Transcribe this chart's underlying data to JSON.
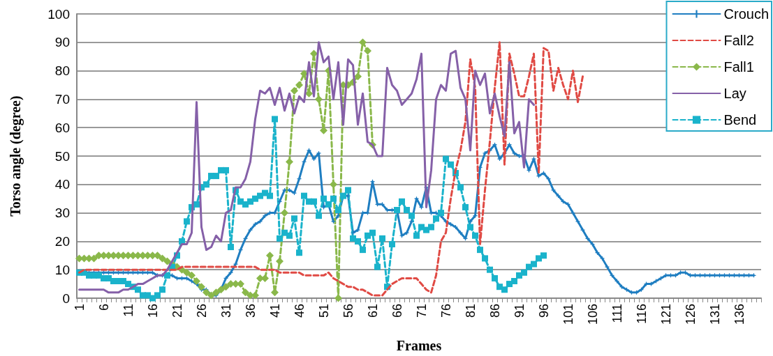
{
  "chart_data": {
    "type": "line",
    "xlabel": "Frames",
    "ylabel": "Torso angle (degree)",
    "categories": [
      "1",
      null,
      null,
      null,
      null,
      "6",
      null,
      null,
      null,
      null,
      "11",
      null,
      null,
      null,
      null,
      "16",
      null,
      null,
      null,
      null,
      "21",
      null,
      null,
      null,
      null,
      "26",
      null,
      null,
      null,
      null,
      "31",
      null,
      null,
      null,
      null,
      "36",
      null,
      null,
      null,
      null,
      "41",
      null,
      null,
      null,
      null,
      "46",
      null,
      null,
      null,
      null,
      "51",
      null,
      null,
      null,
      null,
      "56",
      null,
      null,
      null,
      null,
      "61",
      null,
      null,
      null,
      null,
      "66",
      null,
      null,
      null,
      null,
      "71",
      null,
      null,
      null,
      null,
      "76",
      null,
      null,
      null,
      null,
      "81",
      null,
      null,
      null,
      null,
      "86",
      null,
      null,
      null,
      null,
      "91",
      null,
      null,
      null,
      null,
      "96",
      null,
      null,
      null,
      null,
      "101",
      null,
      null,
      null,
      null,
      "106",
      null,
      null,
      null,
      null,
      "111",
      null,
      null,
      null,
      null,
      "116",
      null,
      null,
      null,
      null,
      "121",
      null,
      null,
      null,
      null,
      "126",
      null,
      null,
      null,
      null,
      "131",
      null,
      null,
      null,
      null,
      "136",
      null,
      null,
      null,
      null
    ],
    "series": [
      {
        "name": "Crouch",
        "color": "#1f7ec1",
        "marker": "cross",
        "line_style": "solid",
        "values": [
          9,
          9,
          9,
          9,
          9,
          9,
          9,
          9,
          9,
          9,
          9,
          9,
          9,
          9,
          9,
          9,
          8,
          8,
          8,
          8,
          7,
          7,
          7,
          6,
          5,
          3,
          3,
          1,
          1,
          3,
          7,
          9,
          12,
          17,
          21,
          24,
          26,
          27,
          29,
          30,
          30,
          34,
          38,
          38,
          37,
          42,
          48,
          52,
          49,
          51,
          32,
          33,
          27,
          29,
          36,
          36,
          23,
          24,
          30,
          30,
          41,
          33,
          33,
          31,
          31,
          31,
          22,
          23,
          27,
          35,
          32,
          39,
          30,
          30,
          29,
          27,
          26,
          25,
          23,
          21,
          27,
          29,
          46,
          51,
          52,
          54,
          49,
          51,
          54,
          51,
          50,
          50,
          45,
          49,
          43,
          44,
          42,
          38,
          36,
          34,
          33,
          30,
          27,
          24,
          21,
          19,
          16,
          14,
          11,
          8,
          6,
          4,
          3,
          2,
          2,
          3,
          5,
          5,
          6,
          7,
          8,
          8,
          8,
          9,
          9,
          8,
          8,
          8,
          8,
          8,
          8,
          8,
          8,
          8,
          8,
          8,
          8,
          8,
          8,
          null
        ]
      },
      {
        "name": "Fall2",
        "color": "#e04a44",
        "marker": "none",
        "line_style": "dashed",
        "values": [
          9,
          10,
          10,
          10,
          10,
          10,
          10,
          10,
          10,
          10,
          10,
          10,
          10,
          10,
          10,
          10,
          10,
          10,
          10,
          10,
          10,
          11,
          11,
          11,
          11,
          11,
          11,
          11,
          11,
          11,
          11,
          11,
          11,
          11,
          11,
          11,
          11,
          10,
          10,
          10,
          10,
          9,
          9,
          9,
          9,
          9,
          8,
          8,
          8,
          8,
          8,
          9,
          7,
          6,
          5,
          4,
          4,
          3,
          3,
          2,
          1,
          1,
          1,
          3,
          5,
          6,
          7,
          7,
          7,
          7,
          5,
          3,
          2,
          8,
          20,
          23,
          35,
          45,
          52,
          62,
          84,
          74,
          19,
          38,
          55,
          74,
          90,
          47,
          86,
          79,
          71,
          71,
          78,
          86,
          44,
          88,
          87,
          73,
          81,
          75,
          70,
          80,
          69,
          78,
          null,
          null,
          null,
          null,
          null,
          null,
          null,
          null,
          null,
          null,
          null,
          null,
          null,
          null,
          null,
          null,
          null,
          null,
          null,
          null,
          null,
          null,
          null,
          null,
          null,
          null,
          null,
          null,
          null,
          null,
          null,
          null,
          null,
          null,
          null,
          null
        ]
      },
      {
        "name": "Fall1",
        "color": "#8ab84a",
        "marker": "diamond",
        "line_style": "dashed",
        "values": [
          14,
          14,
          14,
          14,
          15,
          15,
          15,
          15,
          15,
          15,
          15,
          15,
          15,
          15,
          15,
          15,
          15,
          14,
          13,
          12,
          11,
          10,
          9,
          8,
          6,
          4,
          2,
          1,
          2,
          3,
          4,
          5,
          5,
          5,
          2,
          1,
          1,
          7,
          7,
          15,
          2,
          13,
          30,
          48,
          73,
          75,
          79,
          72,
          86,
          70,
          59,
          80,
          40,
          0,
          75,
          75,
          76,
          78,
          90,
          87,
          54,
          null,
          null,
          null,
          null,
          null,
          null,
          null,
          null,
          null,
          null,
          null,
          null,
          null,
          null,
          null,
          null,
          null,
          null,
          null,
          null,
          null,
          null,
          null,
          null,
          null,
          null,
          null,
          null,
          null,
          null,
          null,
          null,
          null,
          null,
          null,
          null,
          null,
          null,
          null,
          null,
          null,
          null,
          null,
          null,
          null,
          null,
          null,
          null,
          null,
          null,
          null,
          null,
          null,
          null,
          null,
          null,
          null,
          null,
          null,
          null,
          null,
          null,
          null,
          null,
          null,
          null,
          null,
          null,
          null,
          null,
          null,
          null,
          null,
          null,
          null,
          null,
          null,
          null,
          null
        ]
      },
      {
        "name": "Lay",
        "color": "#8560a8",
        "marker": "none",
        "line_style": "solid",
        "values": [
          3,
          3,
          3,
          3,
          3,
          3,
          2,
          2,
          2,
          3,
          3,
          4,
          5,
          5,
          6,
          7,
          8,
          8,
          10,
          13,
          16,
          19,
          19,
          23,
          69,
          25,
          17,
          18,
          22,
          20,
          30,
          31,
          39,
          39,
          42,
          48,
          63,
          73,
          72,
          74,
          68,
          74,
          66,
          72,
          65,
          71,
          69,
          83,
          71,
          90,
          83,
          85,
          70,
          83,
          61,
          84,
          82,
          61,
          72,
          55,
          54,
          50,
          50,
          81,
          75,
          73,
          68,
          70,
          72,
          77,
          86,
          32,
          45,
          70,
          75,
          73,
          86,
          87,
          74,
          70,
          52,
          80,
          75,
          79,
          65,
          72,
          64,
          57,
          83,
          58,
          62,
          46,
          70,
          68,
          null,
          null,
          null,
          null,
          null,
          null,
          null,
          null,
          null,
          null,
          null,
          null,
          null,
          null,
          null,
          null,
          null,
          null,
          null,
          null,
          null,
          null,
          null,
          null,
          null,
          null,
          null,
          null,
          null,
          null,
          null,
          null,
          null,
          null,
          null,
          null,
          null,
          null,
          null,
          null,
          null,
          null,
          null,
          null,
          null,
          null
        ]
      },
      {
        "name": "Bend",
        "color": "#1ab3cb",
        "marker": "square",
        "line_style": "dashed",
        "values": [
          9,
          9,
          8,
          8,
          8,
          7,
          7,
          6,
          6,
          6,
          5,
          4,
          3,
          1,
          1,
          0,
          1,
          3,
          8,
          11,
          15,
          20,
          27,
          32,
          33,
          39,
          40,
          43,
          43,
          45,
          45,
          18,
          38,
          34,
          33,
          34,
          35,
          36,
          37,
          36,
          63,
          21,
          23,
          22,
          28,
          16,
          36,
          34,
          34,
          29,
          35,
          33,
          35,
          31,
          36,
          38,
          21,
          20,
          17,
          22,
          23,
          11,
          21,
          4,
          19,
          31,
          34,
          31,
          29,
          22,
          25,
          24,
          25,
          28,
          30,
          49,
          47,
          44,
          39,
          32,
          25,
          22,
          17,
          14,
          10,
          7,
          4,
          3,
          5,
          6,
          8,
          9,
          11,
          12,
          14,
          15,
          null,
          null,
          null,
          null,
          null,
          null,
          null,
          null,
          null,
          null,
          null,
          null,
          null,
          null,
          null,
          null,
          null,
          null,
          null,
          null,
          null,
          null,
          null,
          null,
          null,
          null,
          null,
          null,
          null,
          null,
          null,
          null,
          null,
          null,
          null,
          null,
          null,
          null,
          null,
          null,
          null,
          null,
          null,
          null
        ]
      }
    ],
    "ylim": [
      0,
      100
    ],
    "yticks": [
      0,
      10,
      20,
      30,
      40,
      50,
      60,
      70,
      80,
      90,
      100
    ],
    "grid": "y",
    "legend": "top right"
  }
}
